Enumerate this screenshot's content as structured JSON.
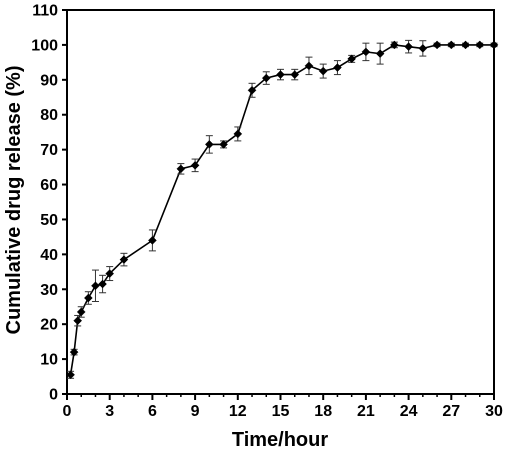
{
  "chart_data": {
    "type": "line",
    "title": "",
    "xlabel": "Time/hour",
    "ylabel": "Cumulative drug release (%)",
    "xlim": [
      0,
      30
    ],
    "ylim": [
      0,
      110
    ],
    "x_ticks": [
      "0",
      "3",
      "6",
      "9",
      "12",
      "15",
      "18",
      "21",
      "24",
      "27",
      "30"
    ],
    "y_ticks": [
      "0",
      "10",
      "20",
      "30",
      "40",
      "50",
      "60",
      "70",
      "80",
      "90",
      "100",
      "110"
    ],
    "grid": false,
    "legend": "none",
    "series": [
      {
        "color": "#000000",
        "marker": "diamond",
        "points": [
          {
            "x": 0.25,
            "y": 5.5,
            "err": 1.0
          },
          {
            "x": 0.5,
            "y": 12.0,
            "err": 0.8
          },
          {
            "x": 0.75,
            "y": 21.0,
            "err": 1.5
          },
          {
            "x": 1.0,
            "y": 23.5,
            "err": 1.5
          },
          {
            "x": 1.5,
            "y": 27.5,
            "err": 1.8
          },
          {
            "x": 2.0,
            "y": 31.0,
            "err": 4.5
          },
          {
            "x": 2.5,
            "y": 31.5,
            "err": 2.5
          },
          {
            "x": 3.0,
            "y": 34.5,
            "err": 2.0
          },
          {
            "x": 4.0,
            "y": 38.5,
            "err": 1.8
          },
          {
            "x": 6.0,
            "y": 44.0,
            "err": 3.0
          },
          {
            "x": 8.0,
            "y": 64.5,
            "err": 1.5
          },
          {
            "x": 9.0,
            "y": 65.5,
            "err": 1.8
          },
          {
            "x": 10.0,
            "y": 71.5,
            "err": 2.5
          },
          {
            "x": 11.0,
            "y": 71.5,
            "err": 1.0
          },
          {
            "x": 12.0,
            "y": 74.5,
            "err": 2.0
          },
          {
            "x": 13.0,
            "y": 87.0,
            "err": 2.0
          },
          {
            "x": 14.0,
            "y": 90.5,
            "err": 1.8
          },
          {
            "x": 15.0,
            "y": 91.5,
            "err": 1.5
          },
          {
            "x": 16.0,
            "y": 91.5,
            "err": 1.5
          },
          {
            "x": 17.0,
            "y": 94.0,
            "err": 2.5
          },
          {
            "x": 18.0,
            "y": 92.5,
            "err": 2.0
          },
          {
            "x": 19.0,
            "y": 93.5,
            "err": 2.0
          },
          {
            "x": 20.0,
            "y": 96.0,
            "err": 1.0
          },
          {
            "x": 21.0,
            "y": 98.0,
            "err": 2.5
          },
          {
            "x": 22.0,
            "y": 97.5,
            "err": 3.0
          },
          {
            "x": 23.0,
            "y": 100.0,
            "err": 0.8
          },
          {
            "x": 24.0,
            "y": 99.5,
            "err": 1.8
          },
          {
            "x": 25.0,
            "y": 99.0,
            "err": 2.2
          },
          {
            "x": 26.0,
            "y": 100.0,
            "err": 0.5
          },
          {
            "x": 27.0,
            "y": 100.0,
            "err": 0.5
          },
          {
            "x": 28.0,
            "y": 100.0,
            "err": 0.5
          },
          {
            "x": 29.0,
            "y": 100.0,
            "err": 0.5
          },
          {
            "x": 30.0,
            "y": 100.0,
            "err": 0.5
          }
        ]
      }
    ]
  }
}
